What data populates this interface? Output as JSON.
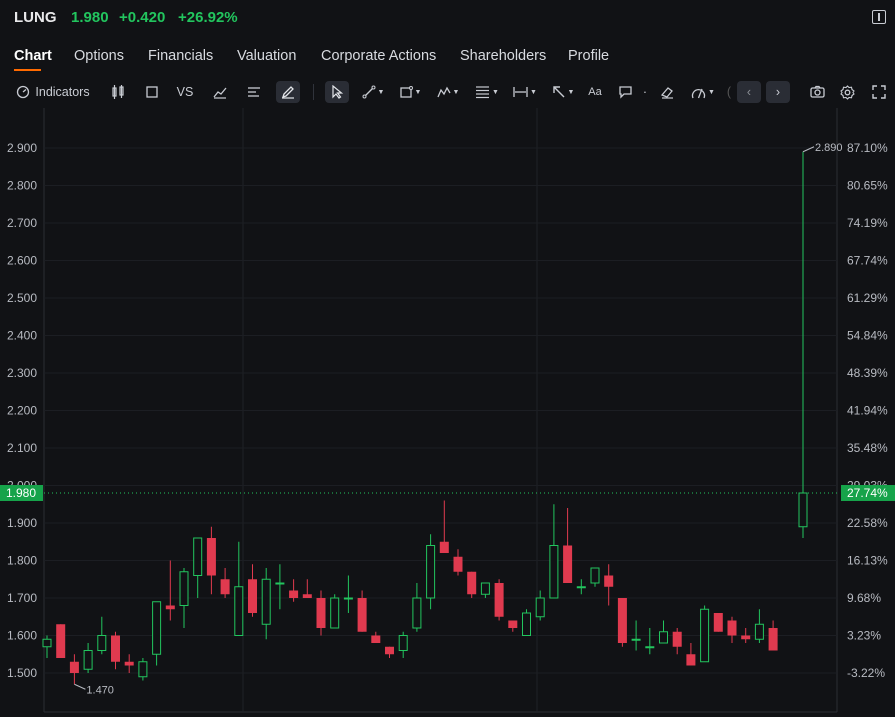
{
  "header": {
    "ticker": "LUNG",
    "price": "1.980",
    "change": "+0.420",
    "change_pct": "+26.92%"
  },
  "tabs": [
    "Chart",
    "Options",
    "Financials",
    "Valuation",
    "Corporate Actions",
    "Shareholders",
    "Profile"
  ],
  "active_tab": "Chart",
  "toolbar": {
    "indicators_label": "Indicators",
    "vs_label": "VS",
    "text_label": "Aa"
  },
  "colors": {
    "up": "#22c55e",
    "down": "#e03a4f",
    "accent": "#ff6a00",
    "background": "#111215"
  },
  "chart_data": {
    "type": "candlestick",
    "y_left_ticks": [
      "2.900",
      "2.800",
      "2.700",
      "2.600",
      "2.500",
      "2.400",
      "2.300",
      "2.200",
      "2.100",
      "2.000",
      "1.900",
      "1.800",
      "1.700",
      "1.600",
      "1.500"
    ],
    "y_right_ticks": [
      "87.10%",
      "80.65%",
      "74.19%",
      "67.74%",
      "61.29%",
      "54.84%",
      "48.39%",
      "41.94%",
      "35.48%",
      "29.03%",
      "22.58%",
      "16.13%",
      "9.68%",
      "3.23%",
      "-3.22%"
    ],
    "ylim": [
      1.44,
      3.02
    ],
    "last_price": "1.980",
    "last_pct": "27.74%",
    "high_label": "2.890",
    "low_label": "1.470",
    "candles": [
      {
        "o": 1.57,
        "h": 1.6,
        "l": 1.54,
        "c": 1.59
      },
      {
        "o": 1.63,
        "h": 1.63,
        "l": 1.54,
        "c": 1.54
      },
      {
        "o": 1.53,
        "h": 1.55,
        "l": 1.47,
        "c": 1.5
      },
      {
        "o": 1.51,
        "h": 1.58,
        "l": 1.5,
        "c": 1.56
      },
      {
        "o": 1.56,
        "h": 1.65,
        "l": 1.55,
        "c": 1.6
      },
      {
        "o": 1.6,
        "h": 1.61,
        "l": 1.51,
        "c": 1.53
      },
      {
        "o": 1.53,
        "h": 1.55,
        "l": 1.5,
        "c": 1.52
      },
      {
        "o": 1.49,
        "h": 1.54,
        "l": 1.48,
        "c": 1.53
      },
      {
        "o": 1.55,
        "h": 1.69,
        "l": 1.52,
        "c": 1.69
      },
      {
        "o": 1.68,
        "h": 1.8,
        "l": 1.64,
        "c": 1.67
      },
      {
        "o": 1.68,
        "h": 1.78,
        "l": 1.62,
        "c": 1.77
      },
      {
        "o": 1.76,
        "h": 1.86,
        "l": 1.7,
        "c": 1.86
      },
      {
        "o": 1.86,
        "h": 1.89,
        "l": 1.71,
        "c": 1.76
      },
      {
        "o": 1.75,
        "h": 1.78,
        "l": 1.7,
        "c": 1.71
      },
      {
        "o": 1.6,
        "h": 1.85,
        "l": 1.6,
        "c": 1.73
      },
      {
        "o": 1.75,
        "h": 1.79,
        "l": 1.65,
        "c": 1.66
      },
      {
        "o": 1.63,
        "h": 1.78,
        "l": 1.59,
        "c": 1.75
      },
      {
        "o": 1.74,
        "h": 1.79,
        "l": 1.67,
        "c": 1.74
      },
      {
        "o": 1.72,
        "h": 1.75,
        "l": 1.69,
        "c": 1.7
      },
      {
        "o": 1.71,
        "h": 1.75,
        "l": 1.7,
        "c": 1.7
      },
      {
        "o": 1.7,
        "h": 1.72,
        "l": 1.6,
        "c": 1.62
      },
      {
        "o": 1.62,
        "h": 1.71,
        "l": 1.62,
        "c": 1.7
      },
      {
        "o": 1.7,
        "h": 1.76,
        "l": 1.66,
        "c": 1.7
      },
      {
        "o": 1.7,
        "h": 1.72,
        "l": 1.61,
        "c": 1.61
      },
      {
        "o": 1.6,
        "h": 1.61,
        "l": 1.58,
        "c": 1.58
      },
      {
        "o": 1.57,
        "h": 1.57,
        "l": 1.54,
        "c": 1.55
      },
      {
        "o": 1.56,
        "h": 1.61,
        "l": 1.54,
        "c": 1.6
      },
      {
        "o": 1.62,
        "h": 1.74,
        "l": 1.61,
        "c": 1.7
      },
      {
        "o": 1.7,
        "h": 1.87,
        "l": 1.67,
        "c": 1.84
      },
      {
        "o": 1.85,
        "h": 1.96,
        "l": 1.82,
        "c": 1.82
      },
      {
        "o": 1.81,
        "h": 1.83,
        "l": 1.76,
        "c": 1.77
      },
      {
        "o": 1.77,
        "h": 1.77,
        "l": 1.7,
        "c": 1.71
      },
      {
        "o": 1.71,
        "h": 1.74,
        "l": 1.7,
        "c": 1.74
      },
      {
        "o": 1.74,
        "h": 1.75,
        "l": 1.64,
        "c": 1.65
      },
      {
        "o": 1.64,
        "h": 1.64,
        "l": 1.61,
        "c": 1.62
      },
      {
        "o": 1.6,
        "h": 1.67,
        "l": 1.6,
        "c": 1.66
      },
      {
        "o": 1.65,
        "h": 1.72,
        "l": 1.64,
        "c": 1.7
      },
      {
        "o": 1.7,
        "h": 1.95,
        "l": 1.7,
        "c": 1.84
      },
      {
        "o": 1.84,
        "h": 1.94,
        "l": 1.74,
        "c": 1.74
      },
      {
        "o": 1.73,
        "h": 1.75,
        "l": 1.71,
        "c": 1.73
      },
      {
        "o": 1.74,
        "h": 1.78,
        "l": 1.73,
        "c": 1.78
      },
      {
        "o": 1.76,
        "h": 1.79,
        "l": 1.68,
        "c": 1.73
      },
      {
        "o": 1.7,
        "h": 1.7,
        "l": 1.57,
        "c": 1.58
      },
      {
        "o": 1.59,
        "h": 1.64,
        "l": 1.56,
        "c": 1.59
      },
      {
        "o": 1.57,
        "h": 1.62,
        "l": 1.55,
        "c": 1.57
      },
      {
        "o": 1.58,
        "h": 1.64,
        "l": 1.58,
        "c": 1.61
      },
      {
        "o": 1.61,
        "h": 1.62,
        "l": 1.55,
        "c": 1.57
      },
      {
        "o": 1.55,
        "h": 1.58,
        "l": 1.52,
        "c": 1.52
      },
      {
        "o": 1.53,
        "h": 1.68,
        "l": 1.53,
        "c": 1.67
      },
      {
        "o": 1.66,
        "h": 1.66,
        "l": 1.61,
        "c": 1.61
      },
      {
        "o": 1.64,
        "h": 1.65,
        "l": 1.58,
        "c": 1.6
      },
      {
        "o": 1.6,
        "h": 1.62,
        "l": 1.58,
        "c": 1.59
      },
      {
        "o": 1.59,
        "h": 1.67,
        "l": 1.58,
        "c": 1.63
      },
      {
        "o": 1.62,
        "h": 1.64,
        "l": 1.56,
        "c": 1.56
      },
      {
        "o": 1.89,
        "h": 2.89,
        "l": 1.86,
        "c": 1.98
      }
    ]
  }
}
